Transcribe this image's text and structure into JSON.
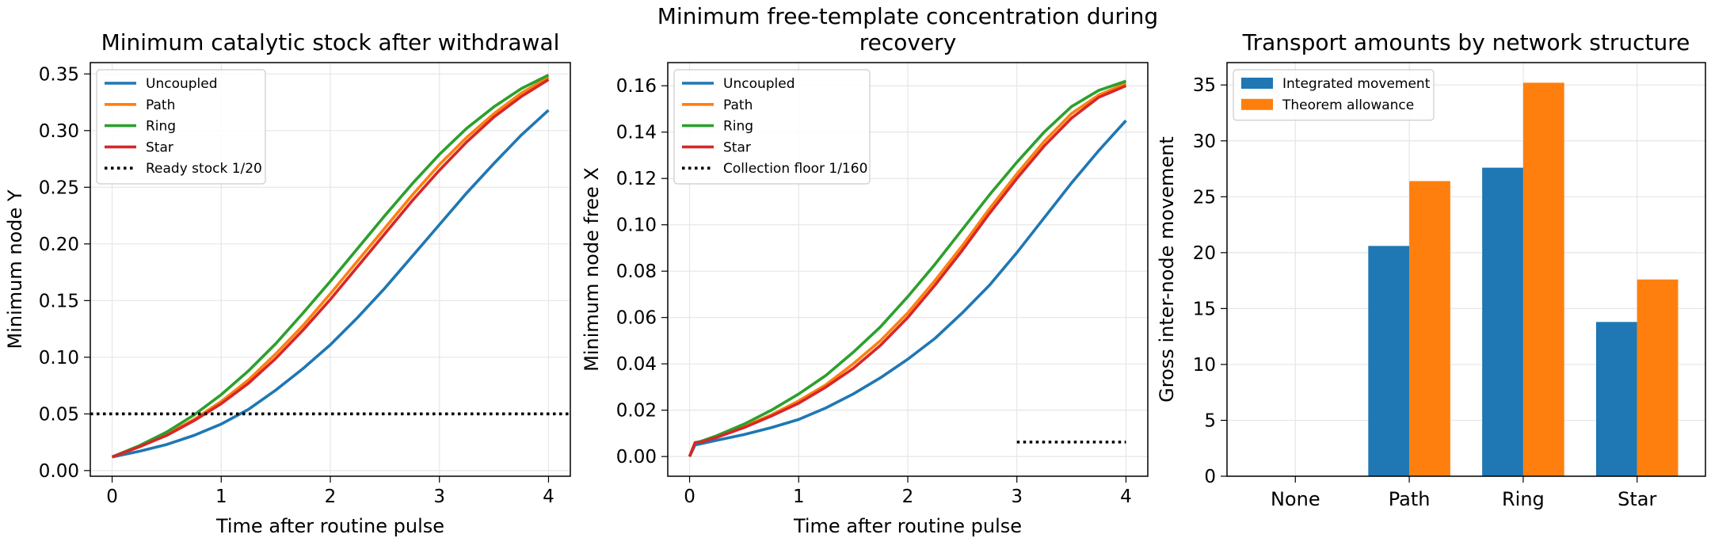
{
  "chart_data": [
    {
      "type": "line",
      "title": "Minimum catalytic stock after withdrawal",
      "xlabel": "Time after routine pulse",
      "ylabel": "Minimum node Y",
      "xlim": [
        -0.2,
        4.2
      ],
      "ylim": [
        -0.005,
        0.36
      ],
      "xticks": [
        "0",
        "1",
        "2",
        "3",
        "4"
      ],
      "yticks": [
        "0.00",
        "0.05",
        "0.10",
        "0.15",
        "0.20",
        "0.25",
        "0.30",
        "0.35"
      ],
      "grid": true,
      "legend_position": "top-left",
      "x": [
        0,
        0.25,
        0.5,
        0.75,
        1.0,
        1.25,
        1.5,
        1.75,
        2.0,
        2.25,
        2.5,
        2.75,
        3.0,
        3.25,
        3.5,
        3.75,
        4.0
      ],
      "series": [
        {
          "name": "Uncoupled",
          "color": "#1f77b4",
          "values": [
            0.012,
            0.017,
            0.023,
            0.031,
            0.041,
            0.054,
            0.071,
            0.09,
            0.111,
            0.135,
            0.161,
            0.189,
            0.217,
            0.245,
            0.271,
            0.296,
            0.318
          ]
        },
        {
          "name": "Path",
          "color": "#ff7f0e",
          "values": [
            0.012,
            0.021,
            0.032,
            0.045,
            0.061,
            0.08,
            0.103,
            0.128,
            0.156,
            0.185,
            0.214,
            0.243,
            0.27,
            0.294,
            0.315,
            0.333,
            0.347
          ]
        },
        {
          "name": "Ring",
          "color": "#2ca02c",
          "values": [
            0.012,
            0.022,
            0.034,
            0.049,
            0.067,
            0.088,
            0.112,
            0.139,
            0.167,
            0.196,
            0.225,
            0.253,
            0.279,
            0.302,
            0.321,
            0.337,
            0.349
          ]
        },
        {
          "name": "Star",
          "color": "#d62728",
          "values": [
            0.012,
            0.021,
            0.031,
            0.044,
            0.059,
            0.077,
            0.099,
            0.124,
            0.151,
            0.18,
            0.209,
            0.238,
            0.265,
            0.29,
            0.312,
            0.33,
            0.345
          ]
        }
      ],
      "reference_line": {
        "name": "Ready stock 1/20",
        "value": 0.05,
        "x_from": -0.2,
        "x_to": 4.2,
        "color": "#000000"
      }
    },
    {
      "type": "line",
      "title": [
        "Minimum free-template concentration during",
        "recovery"
      ],
      "xlabel": "Time after routine pulse",
      "ylabel": "Minimum node free X",
      "xlim": [
        -0.2,
        4.2
      ],
      "ylim": [
        -0.0085,
        0.17
      ],
      "xticks": [
        "0",
        "1",
        "2",
        "3",
        "4"
      ],
      "yticks": [
        "0.00",
        "0.02",
        "0.04",
        "0.06",
        "0.08",
        "0.10",
        "0.12",
        "0.14",
        "0.16"
      ],
      "grid": true,
      "legend_position": "top-left",
      "x": [
        0,
        0.05,
        0.1,
        0.25,
        0.5,
        0.75,
        1.0,
        1.25,
        1.5,
        1.75,
        2.0,
        2.25,
        2.5,
        2.75,
        3.0,
        3.25,
        3.5,
        3.75,
        4.0
      ],
      "series": [
        {
          "name": "Uncoupled",
          "color": "#1f77b4",
          "values": [
            0.0,
            0.005,
            0.0055,
            0.007,
            0.0095,
            0.0125,
            0.016,
            0.021,
            0.027,
            0.034,
            0.042,
            0.051,
            0.062,
            0.074,
            0.088,
            0.103,
            0.118,
            0.132,
            0.145
          ]
        },
        {
          "name": "Path",
          "color": "#ff7f0e",
          "values": [
            0.0,
            0.006,
            0.0063,
            0.0085,
            0.013,
            0.018,
            0.024,
            0.031,
            0.04,
            0.05,
            0.062,
            0.076,
            0.091,
            0.107,
            0.122,
            0.136,
            0.148,
            0.156,
            0.161
          ]
        },
        {
          "name": "Ring",
          "color": "#2ca02c",
          "values": [
            0.0,
            0.006,
            0.0065,
            0.009,
            0.014,
            0.02,
            0.027,
            0.035,
            0.045,
            0.056,
            0.069,
            0.083,
            0.098,
            0.113,
            0.127,
            0.14,
            0.151,
            0.158,
            0.162
          ]
        },
        {
          "name": "Star",
          "color": "#d62728",
          "values": [
            0.0,
            0.006,
            0.0062,
            0.0083,
            0.0125,
            0.0175,
            0.023,
            0.03,
            0.038,
            0.048,
            0.06,
            0.074,
            0.089,
            0.105,
            0.12,
            0.134,
            0.146,
            0.155,
            0.16
          ]
        }
      ],
      "reference_line": {
        "name": "Collection floor 1/160",
        "value": 0.00625,
        "x_from": 3.0,
        "x_to": 4.0,
        "color": "#000000"
      }
    },
    {
      "type": "bar",
      "title": "Transport amounts by network structure",
      "xlabel": "",
      "ylabel": "Gross inter-node movement",
      "categories": [
        "None",
        "Path",
        "Ring",
        "Star"
      ],
      "ylim": [
        0,
        37
      ],
      "yticks": [
        "0",
        "5",
        "10",
        "15",
        "20",
        "25",
        "30",
        "35"
      ],
      "grid": true,
      "legend_position": "top-left",
      "series": [
        {
          "name": "Integrated movement",
          "color": "#1f77b4",
          "values": [
            0,
            20.6,
            27.6,
            13.8
          ]
        },
        {
          "name": "Theorem allowance",
          "color": "#ff7f0e",
          "values": [
            0,
            26.4,
            35.2,
            17.6
          ]
        }
      ]
    }
  ]
}
